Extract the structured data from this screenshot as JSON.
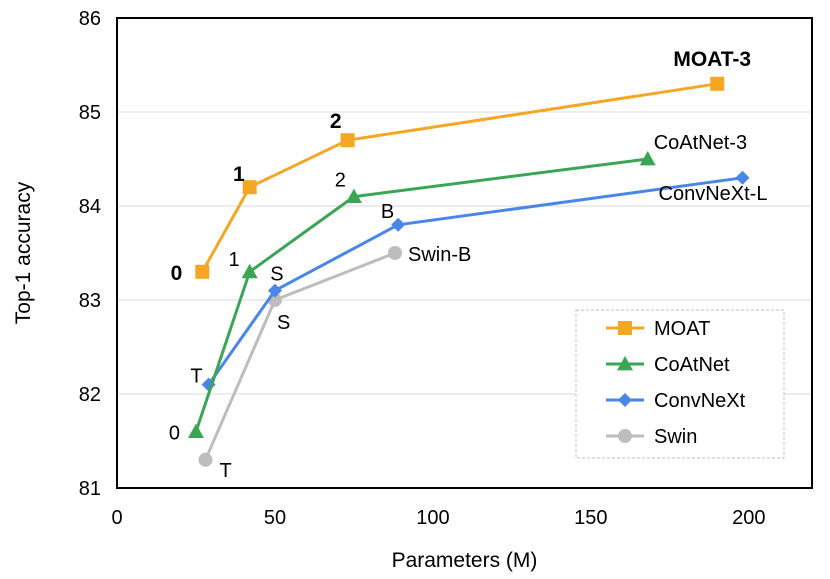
{
  "chart_data": {
    "type": "line",
    "title": "",
    "xlabel": "Parameters (M)",
    "ylabel": "Top-1 accuracy",
    "xlim": [
      0,
      220
    ],
    "ylim": [
      81,
      86
    ],
    "xticks": [
      0,
      50,
      100,
      150,
      200
    ],
    "yticks": [
      81,
      82,
      83,
      84,
      85,
      86
    ],
    "grid": "horizontal",
    "legend_position": "bottom-right",
    "series": [
      {
        "name": "MOAT",
        "color": "#f5a623",
        "marker": "square",
        "x": [
          27,
          42,
          73,
          190
        ],
        "y": [
          83.3,
          84.2,
          84.7,
          85.3
        ],
        "labels": [
          "0",
          "1",
          "2",
          "MOAT-3"
        ],
        "bold_labels": true
      },
      {
        "name": "CoAtNet",
        "color": "#3aa655",
        "marker": "triangle",
        "x": [
          25,
          42,
          75,
          168
        ],
        "y": [
          81.6,
          83.3,
          84.1,
          84.5
        ],
        "labels": [
          "0",
          "1",
          "2",
          "CoAtNet-3"
        ],
        "bold_labels": false
      },
      {
        "name": "ConvNeXt",
        "color": "#4a86e8",
        "marker": "diamond",
        "x": [
          29,
          50,
          89,
          198
        ],
        "y": [
          82.1,
          83.1,
          83.8,
          84.3
        ],
        "labels": [
          "T",
          "S",
          "B",
          "ConvNeXt-L"
        ],
        "bold_labels": false
      },
      {
        "name": "Swin",
        "color": "#bdbdbd",
        "marker": "circle",
        "x": [
          28,
          50,
          88
        ],
        "y": [
          81.3,
          83.0,
          83.5
        ],
        "labels": [
          "T",
          "S",
          "Swin-B"
        ],
        "bold_labels": false
      }
    ]
  }
}
